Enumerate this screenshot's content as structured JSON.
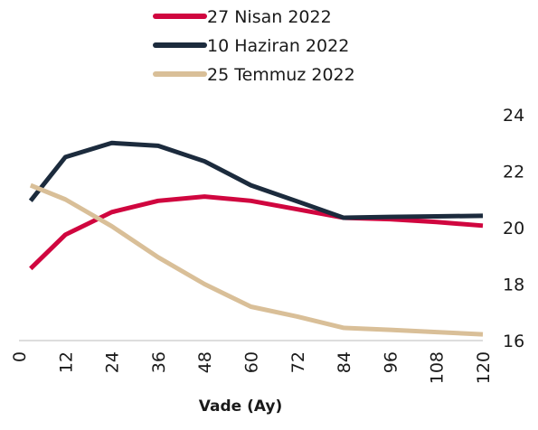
{
  "chart_data": {
    "type": "line",
    "x_label": "Vade (Ay)",
    "x": [
      3,
      12,
      24,
      36,
      48,
      60,
      72,
      84,
      96,
      108,
      120
    ],
    "series": [
      {
        "name": "27 Nisan 2022",
        "color": "#d0063f",
        "values": [
          18.55,
          19.75,
          20.55,
          20.95,
          21.1,
          20.95,
          20.65,
          20.35,
          20.3,
          20.2,
          20.07
        ]
      },
      {
        "name": "10 Haziran 2022",
        "color": "#1c2b3d",
        "values": [
          20.95,
          22.5,
          23.0,
          22.9,
          22.35,
          21.5,
          20.93,
          20.35,
          20.38,
          20.4,
          20.42
        ]
      },
      {
        "name": "25 Temmuz 2022",
        "color": "#d9bf98",
        "values": [
          21.5,
          21.0,
          20.05,
          18.95,
          18.0,
          17.2,
          16.85,
          16.45,
          16.38,
          16.3,
          16.22
        ]
      }
    ],
    "xlim": [
      0,
      120
    ],
    "xticks": [
      0,
      12,
      24,
      36,
      48,
      60,
      72,
      84,
      96,
      108,
      120
    ],
    "ylim": [
      16,
      24
    ],
    "yticks": [
      16,
      18,
      20,
      22,
      24
    ],
    "y_axis_side": "right",
    "grid": false,
    "legend": "top"
  }
}
